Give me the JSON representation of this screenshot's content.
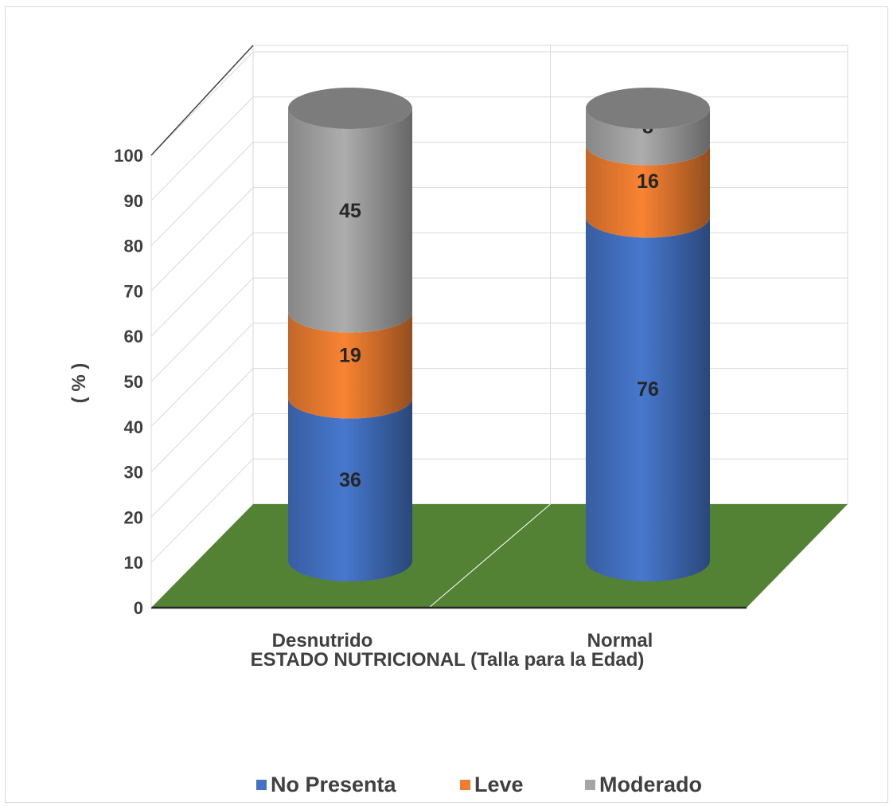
{
  "chart_data": {
    "type": "bar",
    "stacked": true,
    "style": "3d-cylinder",
    "categories": [
      "Desnutrido",
      "Normal"
    ],
    "series": [
      {
        "name": "No Presenta",
        "values": [
          36,
          76
        ],
        "color": "#4472c4"
      },
      {
        "name": "Leve",
        "values": [
          19,
          16
        ],
        "color": "#ed7d31"
      },
      {
        "name": "Moderado",
        "values": [
          45,
          8
        ],
        "color": "#a5a5a5"
      }
    ],
    "ylabel": "( % )",
    "xlabel": "ESTADO NUTRICIONAL (Talla para la Edad)",
    "ylim": [
      0,
      100
    ],
    "yticks": [
      "0",
      "10",
      "20",
      "30",
      "40",
      "50",
      "60",
      "70",
      "80",
      "90",
      "100"
    ],
    "grid": true,
    "legend_position": "bottom",
    "floor_color": "#548235"
  }
}
